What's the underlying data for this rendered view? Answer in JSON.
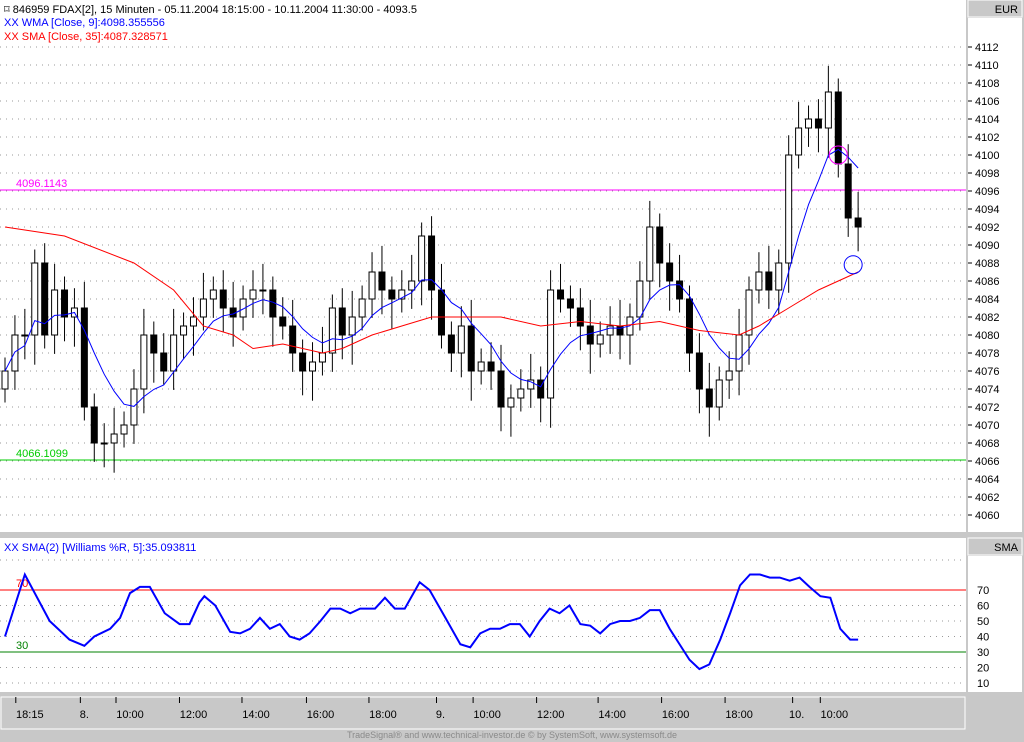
{
  "header": {
    "title": "846959  FDAX[2], 15 Minuten - 05.11.2004 18:15:00 - 10.11.2004 11:30:00 - 4093.5",
    "wma_legend": "XX WMA [Close, 9]:4098.355556",
    "sma_legend": "XX SMA [Close, 35]:4087.328571",
    "osc_legend": "XX SMA(2) [Williams %R, 5]:35.093811",
    "price_axis_label": "EUR",
    "osc_axis_label": "SMA"
  },
  "footer": "TradeSignal® and www.technical-investor.de © by SystemSoft, www.systemsoft.de",
  "colors": {
    "wma": "#0000ff",
    "sma": "#ff0000",
    "resistance": "#ff00ff",
    "support": "#00cc00",
    "osc": "#0000ff",
    "osc_upper": "#ff0000",
    "osc_lower": "#008000"
  },
  "chart_data": [
    {
      "type": "candlestick",
      "title": "FDAX[2], 15 Minuten",
      "ylim": [
        4059,
        4114
      ],
      "yticks": [
        4060,
        4062,
        4064,
        4066,
        4068,
        4070,
        4072,
        4074,
        4076,
        4078,
        4080,
        4082,
        4084,
        4086,
        4088,
        4090,
        4092,
        4094,
        4096,
        4098,
        4100,
        4102,
        4104,
        4106,
        4108,
        4110,
        4112
      ],
      "closes": [
        4076,
        4080,
        4080,
        4088,
        4080,
        4085,
        4082,
        4083,
        4072,
        4068,
        4068,
        4069,
        4070,
        4074,
        4080,
        4078,
        4076,
        4080,
        4081,
        4082,
        4084,
        4085,
        4083,
        4082,
        4084,
        4085,
        4085,
        4082,
        4081,
        4078,
        4076,
        4077,
        4078,
        4083,
        4080,
        4082,
        4084,
        4087,
        4085,
        4084,
        4085,
        4086,
        4091,
        4085,
        4080,
        4078,
        4081,
        4076,
        4077,
        4076,
        4072,
        4073,
        4074,
        4075,
        4073,
        4085,
        4084,
        4083,
        4081,
        4079,
        4080,
        4081,
        4080,
        4082,
        4086,
        4092,
        4088,
        4086,
        4084,
        4078,
        4074,
        4072,
        4075,
        4076,
        4080,
        4085,
        4087,
        4085,
        4088,
        4100,
        4103,
        4104,
        4103,
        4107,
        4099,
        4093,
        4092
      ],
      "sma": [
        [
          0,
          4092
        ],
        [
          6,
          4091
        ],
        [
          13,
          4088
        ],
        [
          17,
          4085
        ],
        [
          20,
          4081
        ],
        [
          23,
          4080
        ],
        [
          25,
          4078.5
        ],
        [
          28,
          4079
        ],
        [
          32,
          4078
        ],
        [
          34,
          4078.5
        ],
        [
          37,
          4080
        ],
        [
          40,
          4081
        ],
        [
          43,
          4082
        ],
        [
          46,
          4082
        ],
        [
          50,
          4082
        ],
        [
          54,
          4081
        ],
        [
          58,
          4081.5
        ],
        [
          62,
          4081
        ],
        [
          66,
          4081.5
        ],
        [
          70,
          4080.5
        ],
        [
          74,
          4080
        ],
        [
          76,
          4081
        ],
        [
          79,
          4083
        ],
        [
          82,
          4085
        ],
        [
          86,
          4087
        ]
      ],
      "hlines": [
        {
          "label": "4096.1143",
          "value": 4096.1143,
          "color": "#ff00ff"
        },
        {
          "label": "4066.1099",
          "value": 4066.1099,
          "color": "#00cc00"
        }
      ],
      "markers": [
        {
          "bar": 84,
          "value": 4100,
          "color": "#ff00ff"
        },
        {
          "bar": 85.5,
          "value": 4087.8,
          "color": "#0000ff"
        }
      ]
    },
    {
      "type": "line",
      "title": "SMA(2) [Williams %R, 5]",
      "ylim": [
        0,
        95
      ],
      "yticks": [
        10,
        20,
        30,
        40,
        50,
        60,
        70
      ],
      "levels": [
        {
          "label": "70",
          "value": 70
        },
        {
          "label": "30",
          "value": 30
        }
      ],
      "values": [
        [
          0,
          40
        ],
        [
          2,
          80
        ],
        [
          4.5,
          50
        ],
        [
          6.5,
          38
        ],
        [
          8,
          34
        ],
        [
          9,
          40
        ],
        [
          10.6,
          45
        ],
        [
          11.6,
          52
        ],
        [
          12.6,
          68
        ],
        [
          13.6,
          72
        ],
        [
          14.6,
          72
        ],
        [
          16.1,
          55
        ],
        [
          17.6,
          48
        ],
        [
          18.6,
          48
        ],
        [
          19.6,
          62
        ],
        [
          20.1,
          66
        ],
        [
          21.2,
          60
        ],
        [
          22.7,
          43
        ],
        [
          23.7,
          42
        ],
        [
          24.7,
          45
        ],
        [
          25.7,
          52
        ],
        [
          26.7,
          45
        ],
        [
          27.7,
          48
        ],
        [
          28.7,
          40
        ],
        [
          29.7,
          38
        ],
        [
          30.7,
          42
        ],
        [
          31.8,
          50
        ],
        [
          32.8,
          58
        ],
        [
          33.8,
          58
        ],
        [
          34.8,
          55
        ],
        [
          35.8,
          58
        ],
        [
          37.3,
          58
        ],
        [
          38.3,
          65
        ],
        [
          39.3,
          58
        ],
        [
          40.3,
          58
        ],
        [
          41.8,
          75
        ],
        [
          42.8,
          70
        ],
        [
          44.4,
          52
        ],
        [
          45.9,
          35
        ],
        [
          46.9,
          33
        ],
        [
          47.9,
          42
        ],
        [
          48.9,
          45
        ],
        [
          49.9,
          45
        ],
        [
          50.9,
          48
        ],
        [
          51.9,
          48
        ],
        [
          52.9,
          40
        ],
        [
          53.9,
          50
        ],
        [
          54.9,
          58
        ],
        [
          55.9,
          55
        ],
        [
          56.9,
          60
        ],
        [
          58,
          48
        ],
        [
          59,
          47
        ],
        [
          60,
          42
        ],
        [
          61,
          48
        ],
        [
          62,
          50
        ],
        [
          63,
          50
        ],
        [
          64,
          52
        ],
        [
          65,
          57
        ],
        [
          66,
          57
        ],
        [
          67,
          45
        ],
        [
          68,
          35
        ],
        [
          69,
          25
        ],
        [
          70,
          19
        ],
        [
          71,
          22
        ],
        [
          72.1,
          38
        ],
        [
          73.1,
          55
        ],
        [
          74.1,
          73
        ],
        [
          75.1,
          80
        ],
        [
          76.1,
          80
        ],
        [
          77.1,
          78
        ],
        [
          78.1,
          78
        ],
        [
          79.1,
          76
        ],
        [
          80.1,
          78
        ],
        [
          81.1,
          72
        ],
        [
          82.2,
          66
        ],
        [
          83.2,
          65
        ],
        [
          84.2,
          45
        ],
        [
          85.2,
          38
        ],
        [
          86,
          38
        ]
      ]
    }
  ],
  "time_axis": [
    {
      "label": "18:15",
      "bar": 2.5
    },
    {
      "label": "8.",
      "bar": 8
    },
    {
      "label": "10:00",
      "bar": 12.6
    },
    {
      "label": "12:00",
      "bar": 19
    },
    {
      "label": "14:00",
      "bar": 25.3
    },
    {
      "label": "16:00",
      "bar": 31.8
    },
    {
      "label": "18:00",
      "bar": 38.1
    },
    {
      "label": "9.",
      "bar": 43.9
    },
    {
      "label": "10:00",
      "bar": 48.6
    },
    {
      "label": "12:00",
      "bar": 55
    },
    {
      "label": "14:00",
      "bar": 61.2
    },
    {
      "label": "16:00",
      "bar": 67.6
    },
    {
      "label": "18:00",
      "bar": 74
    },
    {
      "label": "10.",
      "bar": 79.8
    },
    {
      "label": "10:00",
      "bar": 83.6
    }
  ]
}
